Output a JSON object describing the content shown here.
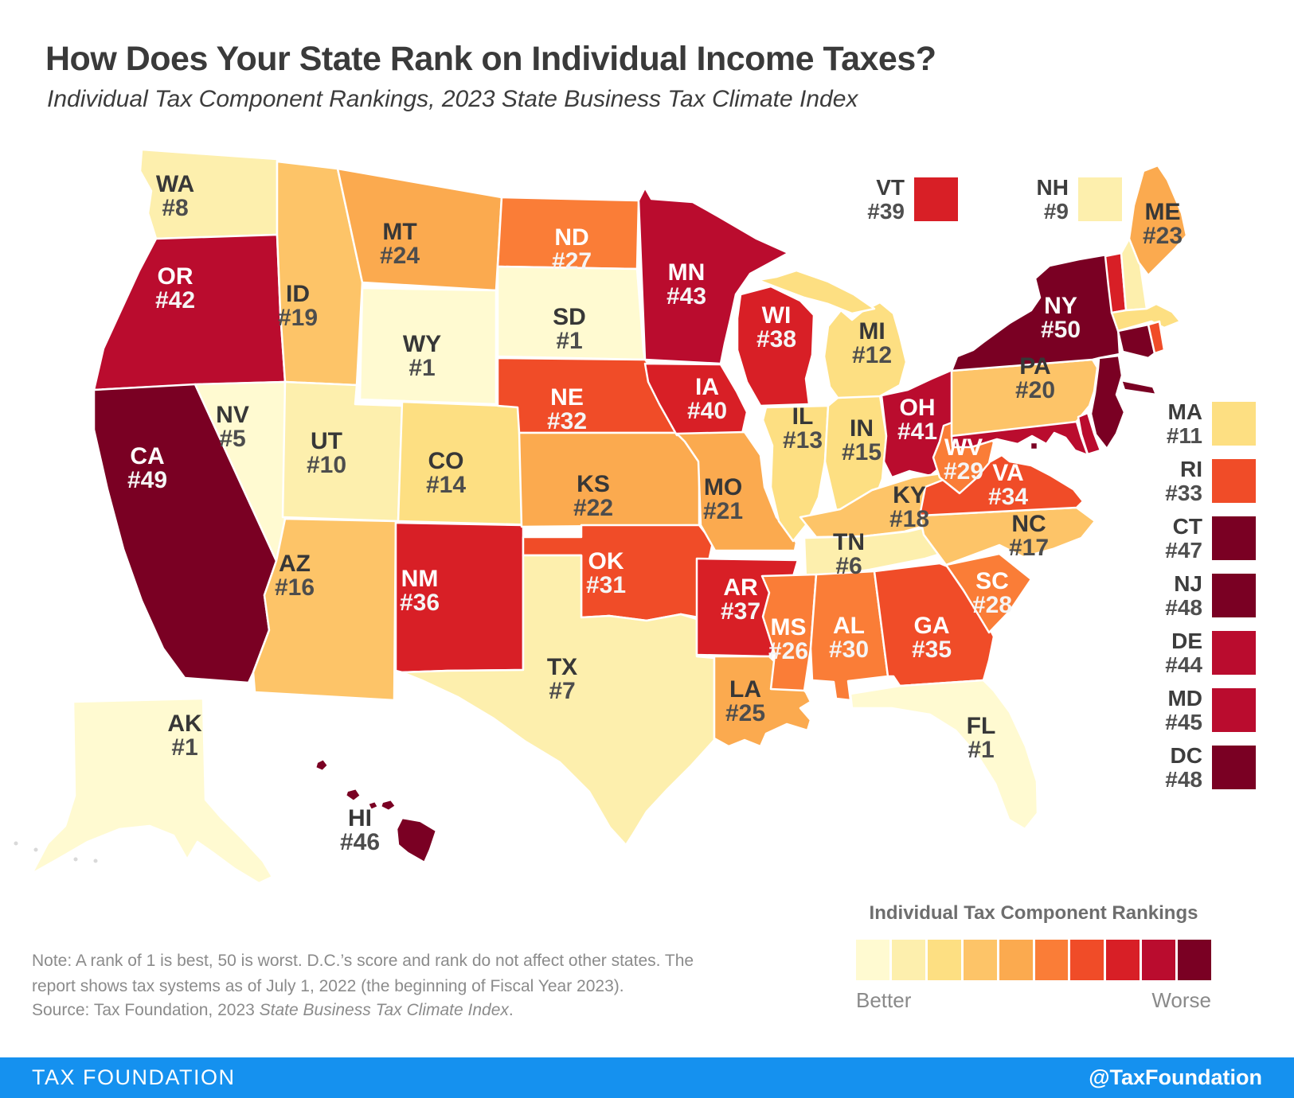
{
  "header": {
    "title": "How Does Your State Rank on Individual Income Taxes?",
    "subtitle": "Individual Tax Component Rankings, 2023 State Business Tax Climate Index"
  },
  "chart_data": {
    "type": "heatmap",
    "title": "How Does Your State Rank on Individual Income Taxes?",
    "subtitle": "Individual Tax Component Rankings, 2023 State Business Tax Climate Index",
    "legend_position": "bottom-right",
    "legend_title": "Individual Tax Component Rankings",
    "scale_note": "1 = best (pale yellow), 50 = worst (dark maroon)"
  },
  "map": {
    "states": [
      {
        "abbr": "WA",
        "rank": 8
      },
      {
        "abbr": "OR",
        "rank": 42
      },
      {
        "abbr": "CA",
        "rank": 49
      },
      {
        "abbr": "NV",
        "rank": 5
      },
      {
        "abbr": "ID",
        "rank": 19
      },
      {
        "abbr": "UT",
        "rank": 10
      },
      {
        "abbr": "AZ",
        "rank": 16
      },
      {
        "abbr": "MT",
        "rank": 24
      },
      {
        "abbr": "WY",
        "rank": 1
      },
      {
        "abbr": "CO",
        "rank": 14
      },
      {
        "abbr": "NM",
        "rank": 36
      },
      {
        "abbr": "ND",
        "rank": 27
      },
      {
        "abbr": "SD",
        "rank": 1
      },
      {
        "abbr": "NE",
        "rank": 32
      },
      {
        "abbr": "KS",
        "rank": 22
      },
      {
        "abbr": "OK",
        "rank": 31
      },
      {
        "abbr": "TX",
        "rank": 7
      },
      {
        "abbr": "MN",
        "rank": 43
      },
      {
        "abbr": "IA",
        "rank": 40
      },
      {
        "abbr": "MO",
        "rank": 21
      },
      {
        "abbr": "AR",
        "rank": 37
      },
      {
        "abbr": "LA",
        "rank": 25
      },
      {
        "abbr": "WI",
        "rank": 38
      },
      {
        "abbr": "IL",
        "rank": 13
      },
      {
        "abbr": "IN",
        "rank": 15
      },
      {
        "abbr": "MI",
        "rank": 12
      },
      {
        "abbr": "OH",
        "rank": 41
      },
      {
        "abbr": "KY",
        "rank": 18
      },
      {
        "abbr": "TN",
        "rank": 6
      },
      {
        "abbr": "MS",
        "rank": 26
      },
      {
        "abbr": "AL",
        "rank": 30
      },
      {
        "abbr": "GA",
        "rank": 35
      },
      {
        "abbr": "FL",
        "rank": 1
      },
      {
        "abbr": "SC",
        "rank": 28
      },
      {
        "abbr": "NC",
        "rank": 17
      },
      {
        "abbr": "VA",
        "rank": 34
      },
      {
        "abbr": "WV",
        "rank": 29
      },
      {
        "abbr": "PA",
        "rank": 20
      },
      {
        "abbr": "NY",
        "rank": 50
      },
      {
        "abbr": "ME",
        "rank": 23
      },
      {
        "abbr": "VT",
        "rank": 39
      },
      {
        "abbr": "NH",
        "rank": 9
      },
      {
        "abbr": "MA",
        "rank": 11
      },
      {
        "abbr": "RI",
        "rank": 33
      },
      {
        "abbr": "CT",
        "rank": 47
      },
      {
        "abbr": "NJ",
        "rank": 48
      },
      {
        "abbr": "DE",
        "rank": 44
      },
      {
        "abbr": "MD",
        "rank": 45
      },
      {
        "abbr": "DC",
        "rank": 48
      },
      {
        "abbr": "AK",
        "rank": 1
      },
      {
        "abbr": "HI",
        "rank": 46
      }
    ],
    "rank_prefix": "#",
    "callouts_top": [
      "VT",
      "NH"
    ],
    "callouts_right": [
      "MA",
      "RI",
      "CT",
      "NJ",
      "DE",
      "MD",
      "DC"
    ]
  },
  "scale": {
    "title": "Individual Tax Component Rankings",
    "better": "Better",
    "worse": "Worse",
    "colors": [
      "#FFFAD1",
      "#FDEFAD",
      "#FDDF82",
      "#FDC468",
      "#FBAA4F",
      "#FA7D37",
      "#F04C28",
      "#D81F26",
      "#BA0C2E",
      "#7A0023"
    ]
  },
  "note": {
    "line1": "Note: A rank of 1 is best, 50 is worst. D.C.’s score and rank do not affect other states. The",
    "line2": "report shows tax systems as of July 1, 2022 (the beginning of Fiscal Year 2023).",
    "source_prefix": "Source: Tax Foundation, 2023 ",
    "source_italic": "State Business Tax Climate Index",
    "source_suffix": "."
  },
  "footer": {
    "brand": "TAX FOUNDATION",
    "handle": "@TaxFoundation"
  },
  "label_colors": {
    "dark_abbr": "#373737",
    "dark_rank": "#4d4d4d",
    "light_abbr": "#ffffff",
    "light_rank": "#f5f5f5"
  }
}
